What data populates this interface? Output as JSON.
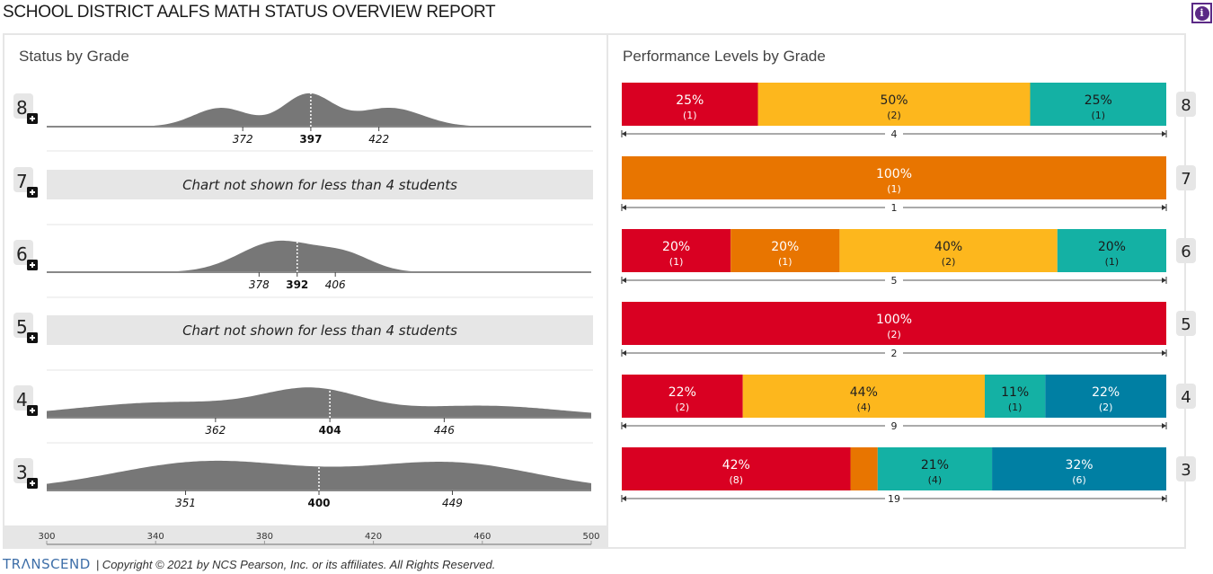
{
  "header": {
    "title": "SCHOOL DISTRICT AALFS MATH STATUS OVERVIEW REPORT",
    "info_icon": "info-icon"
  },
  "left_panel": {
    "title": "Status by Grade",
    "not_shown_message": "Chart not shown for less than 4 students"
  },
  "right_panel": {
    "title": "Performance Levels by Grade"
  },
  "footer": {
    "logo": "TRΛNSCEND",
    "copyright": "| Copyright © 2021 by NCS Pearson, Inc. or its affiliates. All Rights Reserved."
  },
  "colors": {
    "level1": "#d90022",
    "level2": "#e87500",
    "level3": "#fdb71d",
    "level4": "#14b1a4",
    "level5": "#007fa3",
    "density": "#777777",
    "grade_badge": "#e6e6e6"
  },
  "chart_data": [
    {
      "type": "area",
      "title": "Status by Grade",
      "xlabel": "",
      "ylabel": "",
      "xlim": [
        300,
        503
      ],
      "x_ticks": [
        300,
        340,
        380,
        420,
        460,
        500
      ],
      "grades": [
        {
          "grade": "8",
          "shown": true,
          "low": 372,
          "median": 397,
          "high": 422,
          "shape": "trimodal"
        },
        {
          "grade": "7",
          "shown": false
        },
        {
          "grade": "6",
          "shown": true,
          "low": 378,
          "median": 392,
          "high": 406,
          "shape": "unimodal"
        },
        {
          "grade": "5",
          "shown": false
        },
        {
          "grade": "4",
          "shown": true,
          "low": 362,
          "median": 404,
          "high": 446,
          "shape": "wide"
        },
        {
          "grade": "3",
          "shown": true,
          "low": 351,
          "median": 400,
          "high": 449,
          "shape": "bimodal"
        }
      ]
    },
    {
      "type": "bar",
      "title": "Performance Levels by Grade",
      "orientation": "horizontal-stacked-100",
      "grades": [
        {
          "grade": "8",
          "total": 4,
          "segments": [
            {
              "level": 1,
              "pct": 25,
              "count": 1
            },
            {
              "level": 3,
              "pct": 50,
              "count": 2
            },
            {
              "level": 4,
              "pct": 25,
              "count": 1
            }
          ]
        },
        {
          "grade": "7",
          "total": 1,
          "segments": [
            {
              "level": 2,
              "pct": 100,
              "count": 1
            }
          ]
        },
        {
          "grade": "6",
          "total": 5,
          "segments": [
            {
              "level": 1,
              "pct": 20,
              "count": 1
            },
            {
              "level": 2,
              "pct": 20,
              "count": 1
            },
            {
              "level": 3,
              "pct": 40,
              "count": 2
            },
            {
              "level": 4,
              "pct": 20,
              "count": 1
            }
          ]
        },
        {
          "grade": "5",
          "total": 2,
          "segments": [
            {
              "level": 1,
              "pct": 100,
              "count": 2
            }
          ]
        },
        {
          "grade": "4",
          "total": 9,
          "segments": [
            {
              "level": 1,
              "pct": 22,
              "count": 2
            },
            {
              "level": 3,
              "pct": 44,
              "count": 4
            },
            {
              "level": 4,
              "pct": 11,
              "count": 1
            },
            {
              "level": 5,
              "pct": 22,
              "count": 2
            }
          ]
        },
        {
          "grade": "3",
          "total": 19,
          "segments": [
            {
              "level": 1,
              "pct": 42,
              "count": 8
            },
            {
              "level": 2,
              "pct": 5,
              "count": 1,
              "label_hidden": true
            },
            {
              "level": 4,
              "pct": 21,
              "count": 4
            },
            {
              "level": 5,
              "pct": 32,
              "count": 6
            }
          ]
        }
      ]
    }
  ]
}
